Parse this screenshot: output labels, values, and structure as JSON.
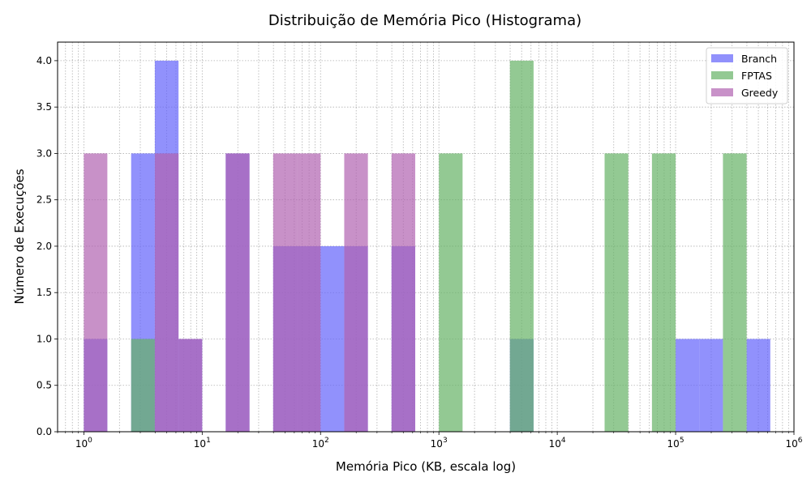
{
  "chart_data": {
    "type": "bar",
    "subtype": "overlapping-histogram",
    "title": "Distribuição de Memória Pico (Histograma)",
    "xlabel": "Memória Pico (KB, escala log)",
    "ylabel": "Número de Execuções",
    "x_scale": "log",
    "xlim": [
      0.6,
      1000000
    ],
    "ylim": [
      0,
      4.2
    ],
    "x_tick_labels": [
      {
        "value": 1,
        "base": "10",
        "exp": "0"
      },
      {
        "value": 10,
        "base": "10",
        "exp": "1"
      },
      {
        "value": 100,
        "base": "10",
        "exp": "2"
      },
      {
        "value": 1000,
        "base": "10",
        "exp": "3"
      },
      {
        "value": 10000,
        "base": "10",
        "exp": "4"
      },
      {
        "value": 100000,
        "base": "10",
        "exp": "5"
      },
      {
        "value": 1000000,
        "base": "10",
        "exp": "6"
      }
    ],
    "y_ticks": [
      "0.0",
      "0.5",
      "1.0",
      "1.5",
      "2.0",
      "2.5",
      "3.0",
      "3.5",
      "4.0"
    ],
    "grid": true,
    "legend_position": "top-right",
    "series": [
      {
        "name": "Branch",
        "color": "#6262fb",
        "bins": [
          {
            "x0": 1.0,
            "x1": 1.58,
            "count": 1
          },
          {
            "x0": 2.51,
            "x1": 3.98,
            "count": 3
          },
          {
            "x0": 3.98,
            "x1": 6.31,
            "count": 4
          },
          {
            "x0": 6.31,
            "x1": 10.0,
            "count": 1
          },
          {
            "x0": 15.8,
            "x1": 25.1,
            "count": 3
          },
          {
            "x0": 39.8,
            "x1": 63.1,
            "count": 2
          },
          {
            "x0": 63.1,
            "x1": 100.0,
            "count": 2
          },
          {
            "x0": 100.0,
            "x1": 158.5,
            "count": 2
          },
          {
            "x0": 158.5,
            "x1": 251.2,
            "count": 2
          },
          {
            "x0": 398.1,
            "x1": 631.0,
            "count": 2
          },
          {
            "x0": 3981,
            "x1": 6310,
            "count": 1
          },
          {
            "x0": 100000,
            "x1": 158490,
            "count": 1
          },
          {
            "x0": 158490,
            "x1": 251190,
            "count": 1
          },
          {
            "x0": 398110,
            "x1": 630960,
            "count": 1
          }
        ]
      },
      {
        "name": "FPTAS",
        "color": "#65b265",
        "bins": [
          {
            "x0": 2.51,
            "x1": 3.98,
            "count": 1
          },
          {
            "x0": 1000,
            "x1": 1585,
            "count": 3
          },
          {
            "x0": 3981,
            "x1": 6310,
            "count": 4
          },
          {
            "x0": 25119,
            "x1": 39811,
            "count": 3
          },
          {
            "x0": 63096,
            "x1": 100000,
            "count": 3
          },
          {
            "x0": 251190,
            "x1": 398110,
            "count": 3
          }
        ]
      },
      {
        "name": "Greedy",
        "color": "#b062b0",
        "bins": [
          {
            "x0": 1.0,
            "x1": 1.58,
            "count": 3
          },
          {
            "x0": 3.98,
            "x1": 6.31,
            "count": 3
          },
          {
            "x0": 6.31,
            "x1": 10.0,
            "count": 1
          },
          {
            "x0": 15.8,
            "x1": 25.1,
            "count": 3
          },
          {
            "x0": 39.8,
            "x1": 63.1,
            "count": 3
          },
          {
            "x0": 63.1,
            "x1": 100.0,
            "count": 3
          },
          {
            "x0": 158.5,
            "x1": 251.2,
            "count": 3
          },
          {
            "x0": 398.1,
            "x1": 631.0,
            "count": 3
          }
        ]
      }
    ]
  }
}
